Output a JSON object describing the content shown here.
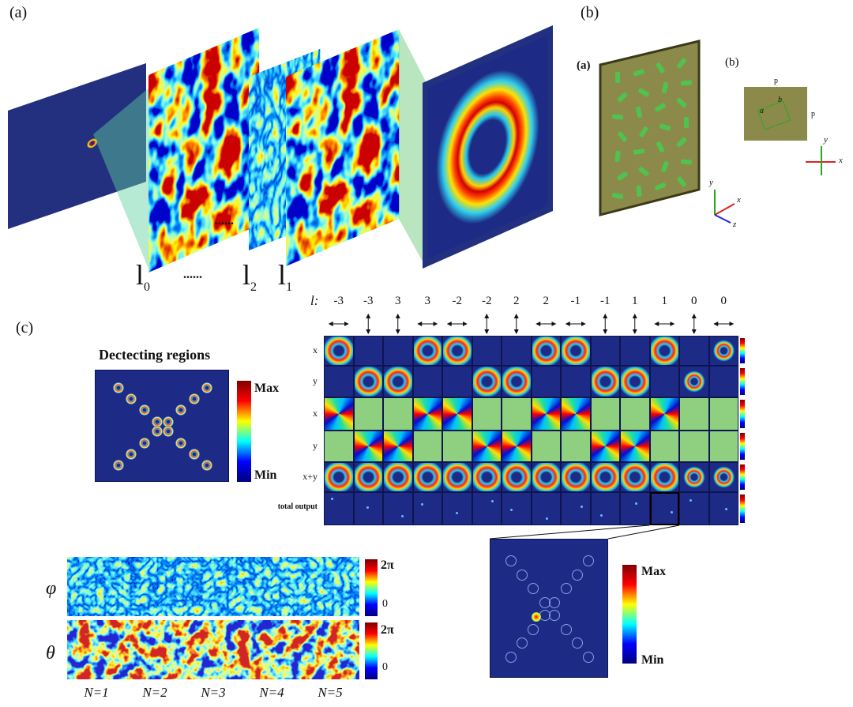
{
  "panel_a": {
    "label": "(a)",
    "plane_labels": [
      {
        "symbol": "l",
        "subscript": "0"
      },
      {
        "symbol": "......"
      },
      {
        "symbol": "l",
        "subscript": "2"
      },
      {
        "symbol": "l",
        "subscript": "1"
      }
    ],
    "gap_marker": "......"
  },
  "panel_b": {
    "label": "(b)",
    "inner_labels": [
      "(a)",
      "(b)"
    ],
    "axes": [
      "y",
      "x",
      "z"
    ],
    "cell_labels": [
      "p",
      "p",
      "b",
      "a"
    ],
    "cross_axes": [
      "y",
      "x"
    ]
  },
  "panel_c": {
    "label": "(c)",
    "l_header": "l:",
    "l_values": [
      -3,
      -3,
      3,
      3,
      -2,
      -2,
      2,
      2,
      -1,
      -1,
      1,
      1,
      0,
      0
    ],
    "row_labels": [
      "x",
      "y",
      "x",
      "y",
      "x+y",
      "total output"
    ],
    "detecting": {
      "title": "Dectecting regions",
      "max": "Max",
      "min": "Min"
    },
    "zoom": {
      "max": "Max",
      "min": "Min"
    },
    "phase": {
      "symbols": [
        "φ",
        "θ"
      ],
      "colorbars": [
        {
          "top": "2π",
          "bottom": "0"
        },
        {
          "top": "2π",
          "bottom": "0"
        }
      ],
      "samples": [
        "N=1",
        "N=2",
        "N=3",
        "N=4",
        "N=5"
      ]
    }
  }
}
